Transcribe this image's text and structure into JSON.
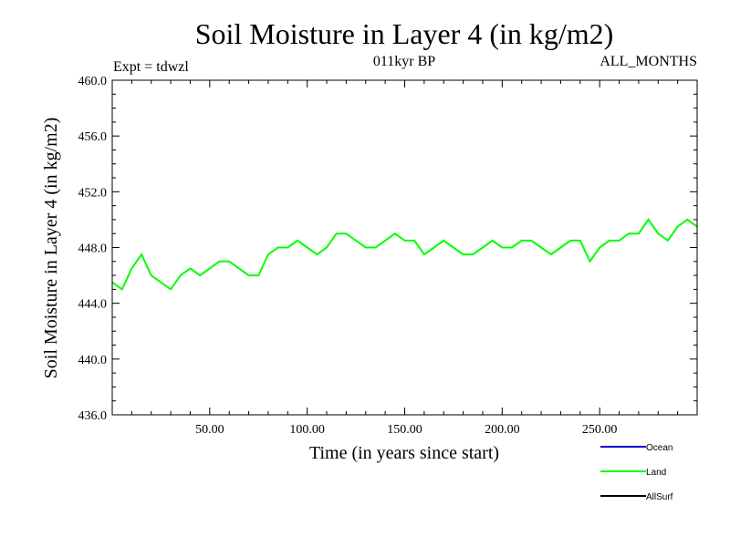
{
  "chart_data": {
    "type": "line",
    "title": "Soil Moisture in Layer 4 (in kg/m2)",
    "subtitle_left": "Expt = tdwzl",
    "subtitle_center": "011kyr BP",
    "subtitle_right": "ALL_MONTHS",
    "xlabel": "Time (in years since start)",
    "ylabel": "Soil Moisture in Layer 4 (in kg/m2)",
    "xlim": [
      0,
      300
    ],
    "ylim": [
      436,
      460
    ],
    "x_ticks": [
      50,
      100,
      150,
      200,
      250
    ],
    "x_tick_labels": [
      "50.00",
      "100.00",
      "150.00",
      "200.00",
      "250.00"
    ],
    "y_ticks": [
      436,
      440,
      444,
      448,
      452,
      456,
      460
    ],
    "y_tick_labels": [
      "436.0",
      "440.0",
      "444.0",
      "448.0",
      "452.0",
      "456.0",
      "460.0"
    ],
    "legend_position": "bottom-right",
    "legend": [
      {
        "name": "Ocean",
        "color": "#0000cc"
      },
      {
        "name": "Land",
        "color": "#00ff00"
      },
      {
        "name": "AllSurf",
        "color": "#000000"
      }
    ],
    "series": [
      {
        "name": "Land",
        "color": "#00ff00",
        "x": [
          0,
          5,
          10,
          15,
          20,
          25,
          30,
          35,
          40,
          45,
          50,
          55,
          60,
          65,
          70,
          75,
          80,
          85,
          90,
          95,
          100,
          105,
          110,
          115,
          120,
          125,
          130,
          135,
          140,
          145,
          150,
          155,
          160,
          165,
          170,
          175,
          180,
          185,
          190,
          195,
          200,
          205,
          210,
          215,
          220,
          225,
          230,
          235,
          240,
          245,
          250,
          255,
          260,
          265,
          270,
          275,
          280,
          285,
          290,
          295,
          300
        ],
        "values": [
          445.5,
          445,
          446.5,
          447.5,
          446,
          445.5,
          445,
          446,
          446.5,
          446,
          446.5,
          447,
          447,
          446.5,
          446,
          446,
          447.5,
          448,
          448,
          448.5,
          448,
          447.5,
          448,
          449,
          449,
          448.5,
          448,
          448,
          448.5,
          449,
          448.5,
          448.5,
          447.5,
          448,
          448.5,
          448,
          447.5,
          447.5,
          448,
          448.5,
          448,
          448,
          448.5,
          448.5,
          448,
          447.5,
          448,
          448.5,
          448.5,
          447,
          448,
          448.5,
          448.5,
          449,
          449,
          450,
          449,
          448.5,
          449.5,
          450,
          449.5
        ]
      }
    ]
  }
}
